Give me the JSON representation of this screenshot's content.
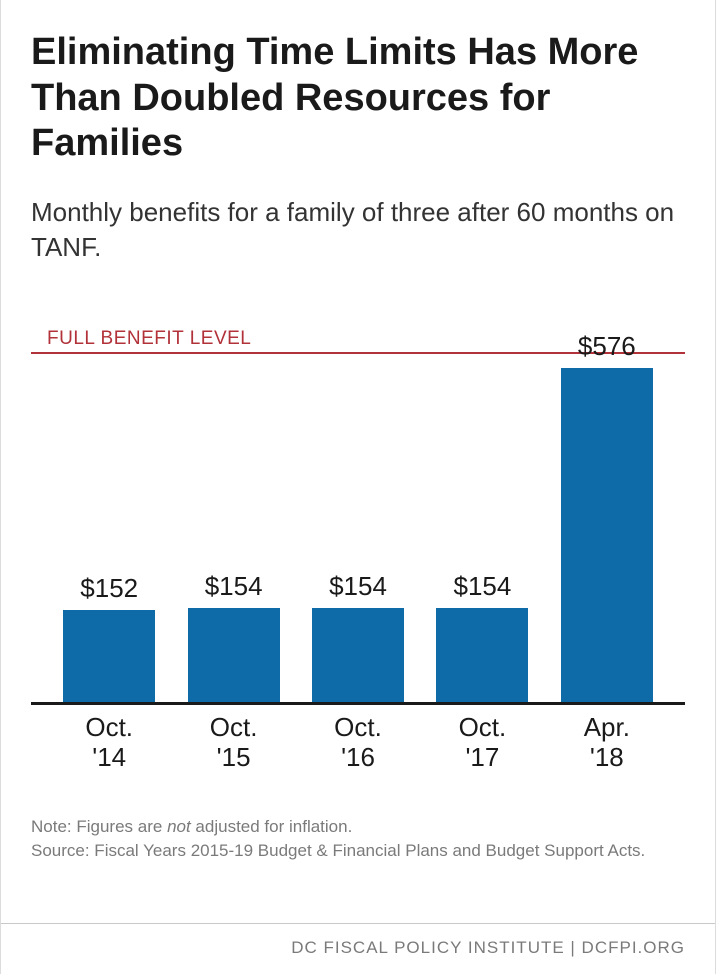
{
  "title": "Eliminating Time Limits Has More Than Doubled Resources for Families",
  "subtitle": "Monthly benefits for a family of three after 60 months on TANF.",
  "chart": {
    "type": "bar",
    "benefit_line_label": "FULL BENEFIT LEVEL",
    "benefit_line_value": 576,
    "benefit_line_color": "#b13239",
    "categories": [
      "Oct. '14",
      "Oct. '15",
      "Oct. '16",
      "Oct. '17",
      "Apr. '18"
    ],
    "values": [
      152,
      154,
      154,
      154,
      576
    ],
    "value_labels": [
      "$152",
      "$154",
      "$154",
      "$154",
      "$576"
    ],
    "bar_color": "#0f6aa8",
    "axis_color": "#1a1a1a",
    "ylim": [
      0,
      610
    ],
    "bar_width_pct": 74,
    "value_fontsize": 26,
    "label_fontsize": 26,
    "background_color": "#ffffff"
  },
  "note_prefix": "Note: Figures are ",
  "note_em": "not",
  "note_suffix": " adjusted for inflation.",
  "source": "Source: Fiscal Years 2015-19 Budget & Financial Plans and Budget Support Acts.",
  "footer": "DC FISCAL POLICY INSTITUTE | DCFPI.ORG",
  "colors": {
    "text": "#1a1a1a",
    "muted": "#7a7a7a",
    "divider": "#c9c9c9"
  }
}
